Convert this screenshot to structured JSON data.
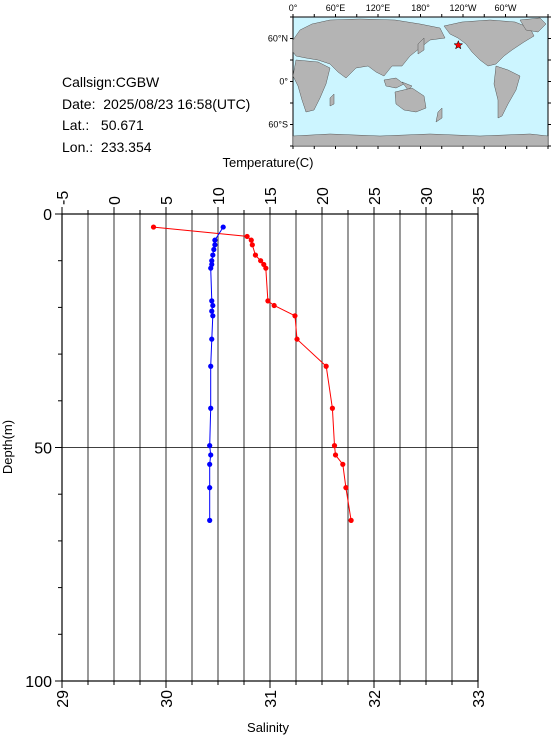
{
  "header": {
    "callsign_label": "Callsign:",
    "callsign": "CGBW",
    "date_label": "Date:",
    "date": "2025/08/23 16:58(UTC)",
    "lat_label": "Lat.:",
    "lat": "50.671",
    "lon_label": "Lon.:",
    "lon": "233.354"
  },
  "map": {
    "top_labels": [
      "0°",
      "60°E",
      "120°E",
      "180°",
      "120°W",
      "60°W"
    ],
    "left_labels": [
      "60°N",
      "0°",
      "60°S"
    ],
    "ocean_color": "#ccf5ff",
    "land_color": "#b4b4b4",
    "marker_color": "#ff0000",
    "marker_lat": 50.671,
    "marker_lon": 233.354
  },
  "chart_data": {
    "type": "line",
    "temperature_axis": {
      "label": "Temperature(C)",
      "range": [
        -5,
        35
      ],
      "ticks": [
        "-5",
        "0",
        "5",
        "10",
        "15",
        "20",
        "25",
        "30",
        "35"
      ],
      "color": "#ff0000"
    },
    "salinity_axis": {
      "label": "Salinity",
      "range": [
        29,
        33
      ],
      "ticks": [
        "29",
        "30",
        "31",
        "32",
        "33"
      ],
      "color": "#0000ff"
    },
    "depth_axis": {
      "label": "Depth(m)",
      "range": [
        0,
        100
      ],
      "ticks": [
        "0",
        "50",
        "100"
      ],
      "inverted": true
    },
    "grid": true,
    "series": [
      {
        "kind": "temperature",
        "color": "#ff0000",
        "points": [
          [
            3.8,
            2.8
          ],
          [
            12.8,
            4.8
          ],
          [
            13.2,
            5.6
          ],
          [
            13.3,
            6.6
          ],
          [
            13.6,
            8.8
          ],
          [
            14.1,
            10.0
          ],
          [
            14.4,
            10.8
          ],
          [
            14.6,
            11.6
          ],
          [
            14.8,
            18.6
          ],
          [
            15.4,
            19.6
          ],
          [
            17.4,
            21.8
          ],
          [
            17.6,
            26.8
          ],
          [
            20.4,
            32.6
          ],
          [
            21.0,
            41.6
          ],
          [
            21.2,
            49.6
          ],
          [
            21.3,
            51.6
          ],
          [
            22.0,
            53.6
          ],
          [
            22.3,
            58.6
          ],
          [
            22.8,
            65.6
          ]
        ]
      },
      {
        "kind": "salinity",
        "color": "#0000ff",
        "points": [
          [
            30.55,
            2.8
          ],
          [
            30.47,
            5.6
          ],
          [
            30.47,
            6.6
          ],
          [
            30.46,
            7.6
          ],
          [
            30.45,
            8.8
          ],
          [
            30.44,
            10.0
          ],
          [
            30.44,
            10.8
          ],
          [
            30.43,
            11.6
          ],
          [
            30.44,
            18.6
          ],
          [
            30.45,
            19.6
          ],
          [
            30.44,
            20.8
          ],
          [
            30.45,
            21.8
          ],
          [
            30.44,
            26.8
          ],
          [
            30.43,
            32.6
          ],
          [
            30.43,
            41.6
          ],
          [
            30.42,
            49.6
          ],
          [
            30.43,
            51.6
          ],
          [
            30.42,
            53.6
          ],
          [
            30.42,
            58.6
          ],
          [
            30.42,
            65.6
          ]
        ]
      }
    ]
  }
}
